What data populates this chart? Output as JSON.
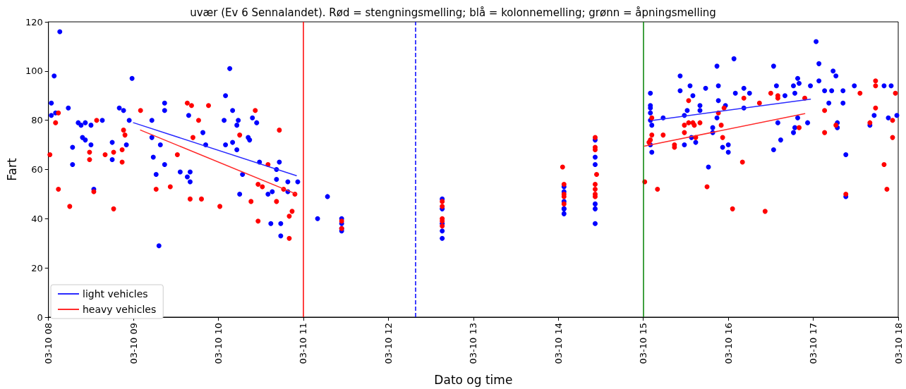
{
  "chart_data": {
    "type": "scatter",
    "title": "uvær (Ev 6 Sennalandet). Rød = stengningsmelling; blå = kolonnemelling; grønn = åpningsmelling",
    "xlabel": "Dato og time",
    "ylabel": "Fart",
    "xlim": [
      "--03-10T08:00",
      "--03-10T18:00"
    ],
    "xticks": [
      {
        "value": "--03-10T08:00",
        "label": "03-10 08"
      },
      {
        "value": "--03-10T09:00",
        "label": "03-10 09"
      },
      {
        "value": "--03-10T10:00",
        "label": "03-10 10"
      },
      {
        "value": "--03-10T11:00",
        "label": "03-10 11"
      },
      {
        "value": "--03-10T12:00",
        "label": "03-10 12"
      },
      {
        "value": "--03-10T13:00",
        "label": "03-10 13"
      },
      {
        "value": "--03-10T14:00",
        "label": "03-10 14"
      },
      {
        "value": "--03-10T15:00",
        "label": "03-10 15"
      },
      {
        "value": "--03-10T16:00",
        "label": "03-10 16"
      },
      {
        "value": "--03-10T17:00",
        "label": "03-10 17"
      },
      {
        "value": "--03-10T18:00",
        "label": "03-10 18"
      }
    ],
    "ylim": [
      0,
      120
    ],
    "yticks": [
      0,
      20,
      40,
      60,
      80,
      100,
      120
    ],
    "grid": false,
    "legend": "bottom left",
    "ref_lines": [
      {
        "axis": "x",
        "value": "--03-10T11:00",
        "color": "#ff0000",
        "line_style": "solid"
      },
      {
        "axis": "x",
        "value": "--03-10T12:19",
        "color": "#0000ff",
        "line_style": "dashed"
      },
      {
        "axis": "x",
        "value": "--03-10T15:00",
        "color": "#008000",
        "line_style": "solid"
      }
    ],
    "series": [
      {
        "marker": "circle",
        "color": "#0000ff",
        "x": [
          "--03-10T08:02",
          "--03-10T08:02",
          "--03-10T08:04",
          "--03-10T08:05",
          "--03-10T08:08",
          "--03-10T08:14",
          "--03-10T08:17",
          "--03-10T08:17",
          "--03-10T08:21",
          "--03-10T08:23",
          "--03-10T08:24",
          "--03-10T08:26",
          "--03-10T08:26",
          "--03-10T08:30",
          "--03-10T08:30",
          "--03-10T08:32",
          "--03-10T08:38",
          "--03-10T08:45",
          "--03-10T08:45",
          "--03-10T08:50",
          "--03-10T08:53",
          "--03-10T08:55",
          "--03-10T08:57",
          "--03-10T08:59",
          "--03-10T09:13",
          "--03-10T09:13",
          "--03-10T09:14",
          "--03-10T09:16",
          "--03-10T09:18",
          "--03-10T09:19",
          "--03-10T09:22",
          "--03-10T09:22",
          "--03-10T09:22",
          "--03-10T09:33",
          "--03-10T09:38",
          "--03-10T09:39",
          "--03-10T09:40",
          "--03-10T09:40",
          "--03-10T09:49",
          "--03-10T09:51",
          "--03-10T10:04",
          "--03-10T10:05",
          "--03-10T10:05",
          "--03-10T10:08",
          "--03-10T10:10",
          "--03-10T10:10",
          "--03-10T10:13",
          "--03-10T10:13",
          "--03-10T10:14",
          "--03-10T10:15",
          "--03-10T10:17",
          "--03-10T10:21",
          "--03-10T10:22",
          "--03-10T10:24",
          "--03-10T10:27",
          "--03-10T10:29",
          "--03-10T10:35",
          "--03-10T10:37",
          "--03-10T10:38",
          "--03-10T10:41",
          "--03-10T10:41",
          "--03-10T10:43",
          "--03-10T10:44",
          "--03-10T10:44",
          "--03-10T10:49",
          "--03-10T10:49",
          "--03-10T10:56",
          "--03-10T11:10",
          "--03-10T11:17",
          "--03-10T11:27",
          "--03-10T11:27",
          "--03-10T11:27",
          "--03-10T11:27",
          "--03-10T12:38",
          "--03-10T12:38",
          "--03-10T12:38",
          "--03-10T12:38",
          "--03-10T12:38",
          "--03-10T14:04",
          "--03-10T14:04",
          "--03-10T14:04",
          "--03-10T14:04",
          "--03-10T14:04",
          "--03-10T14:04",
          "--03-10T14:26",
          "--03-10T14:26",
          "--03-10T14:26",
          "--03-10T14:26",
          "--03-10T14:26",
          "--03-10T14:26",
          "--03-10T15:05",
          "--03-10T15:05",
          "--03-10T15:05",
          "--03-10T15:05",
          "--03-10T15:05",
          "--03-10T15:06",
          "--03-10T15:05",
          "--03-10T15:06",
          "--03-10T15:14",
          "--03-10T15:26",
          "--03-10T15:26",
          "--03-10T15:33",
          "--03-10T15:29",
          "--03-10T15:31",
          "--03-10T15:29",
          "--03-10T15:35",
          "--03-10T15:34",
          "--03-10T15:37",
          "--03-10T15:40",
          "--03-10T15:40",
          "--03-10T15:44",
          "--03-10T15:46",
          "--03-10T15:49",
          "--03-10T15:49",
          "--03-10T15:52",
          "--03-10T15:52",
          "--03-10T15:53",
          "--03-10T15:53",
          "--03-10T15:56",
          "--03-10T15:58",
          "--03-10T16:00",
          "--03-10T16:00",
          "--03-10T16:04",
          "--03-10T16:05",
          "--03-10T16:11",
          "--03-10T16:11",
          "--03-10T16:15",
          "--03-10T16:32",
          "--03-10T16:32",
          "--03-10T16:34",
          "--03-10T16:35",
          "--03-10T16:37",
          "--03-10T16:40",
          "--03-10T16:46",
          "--03-10T16:46",
          "--03-10T16:47",
          "--03-10T16:47",
          "--03-10T16:49",
          "--03-10T16:49",
          "--03-10T16:50",
          "--03-10T16:56",
          "--03-10T16:58",
          "--03-10T17:02",
          "--03-10T17:04",
          "--03-10T17:04",
          "--03-10T17:08",
          "--03-10T17:11",
          "--03-10T17:13",
          "--03-10T17:14",
          "--03-10T17:16",
          "--03-10T17:17",
          "--03-10T17:17",
          "--03-10T17:21",
          "--03-10T17:21",
          "--03-10T17:23",
          "--03-10T17:23",
          "--03-10T17:29",
          "--03-10T17:40",
          "--03-10T17:43",
          "--03-10T17:50",
          "--03-10T17:55",
          "--03-10T17:53",
          "--03-10T17:59"
        ],
        "values": [
          87,
          82,
          98,
          83,
          116,
          85,
          62,
          69,
          79,
          78,
          73,
          79,
          72,
          78,
          70,
          52,
          80,
          71,
          64,
          85,
          84,
          70,
          80,
          97,
          80,
          73,
          65,
          58,
          29,
          70,
          62,
          87,
          84,
          59,
          57,
          82,
          59,
          55,
          75,
          70,
          80,
          70,
          90,
          101,
          84,
          71,
          78,
          68,
          80,
          50,
          58,
          73,
          72,
          81,
          79,
          63,
          50,
          38,
          51,
          56,
          60,
          63,
          38,
          33,
          55,
          51,
          55,
          40,
          49,
          40,
          38,
          36,
          35,
          48,
          44,
          38,
          35,
          32,
          53,
          51,
          47,
          44,
          44,
          42,
          72,
          65,
          62,
          46,
          44,
          38,
          91,
          86,
          85,
          83,
          80,
          78,
          70,
          67,
          81,
          92,
          98,
          94,
          82,
          84,
          70,
          90,
          73,
          71,
          86,
          84,
          93,
          61,
          77,
          75,
          102,
          81,
          94,
          88,
          69,
          86,
          67,
          70,
          105,
          91,
          93,
          85,
          91,
          102,
          68,
          94,
          79,
          72,
          90,
          94,
          75,
          91,
          77,
          97,
          81,
          95,
          79,
          94,
          112,
          96,
          103,
          92,
          87,
          92,
          100,
          98,
          79,
          77,
          92,
          87,
          66,
          49,
          94,
          78,
          82,
          94,
          94,
          81,
          82
        ]
      },
      {
        "marker": "circle",
        "color": "#ff0000",
        "x": [
          "--03-10T08:01",
          "--03-10T08:05",
          "--03-10T08:07",
          "--03-10T08:07",
          "--03-10T08:15",
          "--03-10T08:29",
          "--03-10T08:29",
          "--03-10T08:32",
          "--03-10T08:34",
          "--03-10T08:40",
          "--03-10T08:46",
          "--03-10T08:46",
          "--03-10T08:52",
          "--03-10T08:52",
          "--03-10T08:53",
          "--03-10T08:54",
          "--03-10T09:05",
          "--03-10T09:16",
          "--03-10T09:26",
          "--03-10T09:31",
          "--03-10T09:38",
          "--03-10T09:41",
          "--03-10T09:42",
          "--03-10T09:40",
          "--03-10T09:46",
          "--03-10T09:48",
          "--03-10T09:53",
          "--03-10T10:01",
          "--03-10T10:15",
          "--03-10T10:23",
          "--03-10T10:26",
          "--03-10T10:28",
          "--03-10T10:28",
          "--03-10T10:31",
          "--03-10T10:35",
          "--03-10T10:41",
          "--03-10T10:43",
          "--03-10T10:46",
          "--03-10T10:50",
          "--03-10T10:50",
          "--03-10T10:52",
          "--03-10T10:54",
          "--03-10T11:27",
          "--03-10T11:27",
          "--03-10T12:38",
          "--03-10T12:38",
          "--03-10T12:38",
          "--03-10T12:38",
          "--03-10T12:38",
          "--03-10T14:03",
          "--03-10T14:04",
          "--03-10T14:04",
          "--03-10T14:04",
          "--03-10T14:04",
          "--03-10T14:26",
          "--03-10T14:26",
          "--03-10T14:26",
          "--03-10T14:27",
          "--03-10T14:26",
          "--03-10T14:26",
          "--03-10T14:26",
          "--03-10T14:26",
          "--03-10T15:01",
          "--03-10T15:06",
          "--03-10T15:06",
          "--03-10T15:05",
          "--03-10T15:04",
          "--03-10T15:10",
          "--03-10T15:14",
          "--03-10T15:22",
          "--03-10T15:22",
          "--03-10T15:29",
          "--03-10T15:29",
          "--03-10T15:32",
          "--03-10T15:32",
          "--03-10T15:35",
          "--03-10T15:36",
          "--03-10T15:37",
          "--03-10T15:40",
          "--03-10T15:45",
          "--03-10T15:53",
          "--03-10T15:55",
          "--03-10T15:56",
          "--03-10T15:57",
          "--03-10T16:03",
          "--03-10T16:10",
          "--03-10T16:11",
          "--03-10T16:22",
          "--03-10T16:26",
          "--03-10T16:30",
          "--03-10T16:35",
          "--03-10T16:35",
          "--03-10T16:50",
          "--03-10T16:54",
          "--03-10T17:08",
          "--03-10T17:08",
          "--03-10T17:16",
          "--03-10T17:23",
          "--03-10T17:33",
          "--03-10T17:40",
          "--03-10T17:44",
          "--03-10T17:44",
          "--03-10T17:44",
          "--03-10T17:50",
          "--03-10T17:52",
          "--03-10T17:56",
          "--03-10T17:56",
          "--03-10T17:58"
        ],
        "values": [
          66,
          79,
          83,
          52,
          45,
          67,
          64,
          51,
          80,
          66,
          67,
          44,
          68,
          63,
          76,
          74,
          84,
          52,
          53,
          66,
          87,
          86,
          73,
          48,
          80,
          48,
          86,
          45,
          74,
          47,
          84,
          39,
          54,
          53,
          62,
          47,
          76,
          52,
          41,
          32,
          43,
          50,
          39,
          36,
          47,
          45,
          40,
          39,
          37,
          61,
          54,
          50,
          49,
          46,
          73,
          69,
          68,
          58,
          54,
          52,
          50,
          49,
          55,
          81,
          74,
          72,
          71,
          52,
          74,
          70,
          69,
          78,
          75,
          88,
          79,
          79,
          78,
          73,
          79,
          53,
          83,
          78,
          73,
          85,
          44,
          63,
          89,
          87,
          43,
          91,
          90,
          89,
          77,
          89,
          75,
          84,
          78,
          50,
          91,
          79,
          96,
          94,
          85,
          62,
          52,
          73,
          80,
          91
        ]
      },
      {
        "type": "line",
        "name": "light vehicles",
        "marker": "none",
        "color": "#2a2aff",
        "x": [
          "--03-10T09:00",
          "--03-10T10:55",
          "--03-10T12:00",
          "--03-10T15:07",
          "--03-10T16:58"
        ],
        "values": [
          79,
          57.5,
          null,
          80,
          88.6
        ]
      },
      {
        "type": "line",
        "name": "heavy vehicles",
        "marker": "none",
        "color": "#ff2a2a",
        "x": [
          "--03-10T09:05",
          "--03-10T10:55",
          "--03-10T12:00",
          "--03-10T15:01",
          "--03-10T16:54"
        ],
        "values": [
          76,
          50,
          null,
          69.5,
          82.7
        ]
      }
    ]
  }
}
